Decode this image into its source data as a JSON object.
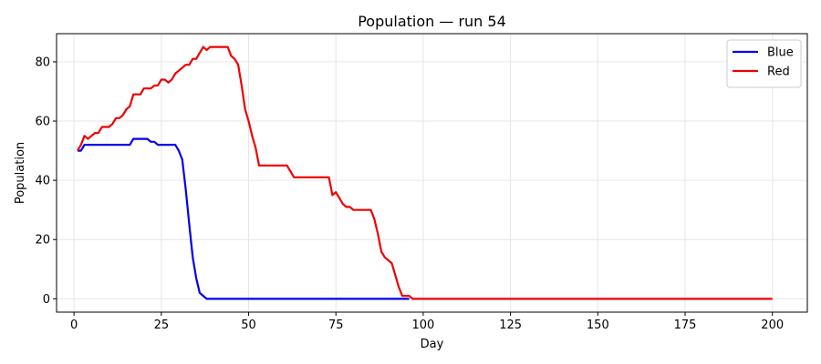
{
  "chart_data": {
    "type": "line",
    "title": "Population — run 54",
    "xlabel": "Day",
    "ylabel": "Population",
    "xlim": [
      -5,
      210
    ],
    "ylim": [
      -4.5,
      89.5
    ],
    "xticks": [
      0,
      25,
      50,
      75,
      100,
      125,
      150,
      175,
      200
    ],
    "yticks": [
      0,
      20,
      40,
      60,
      80
    ],
    "grid": true,
    "legend": "top-right",
    "series": [
      {
        "name": "Blue",
        "color": "#0000ee",
        "points": [
          [
            1,
            50
          ],
          [
            2,
            50
          ],
          [
            3,
            52
          ],
          [
            5,
            52
          ],
          [
            10,
            52
          ],
          [
            15,
            52
          ],
          [
            16,
            52
          ],
          [
            17,
            54
          ],
          [
            18,
            54
          ],
          [
            20,
            54
          ],
          [
            21,
            54
          ],
          [
            22,
            53
          ],
          [
            23,
            53
          ],
          [
            24,
            52
          ],
          [
            26,
            52
          ],
          [
            28,
            52
          ],
          [
            29,
            52
          ],
          [
            30,
            50
          ],
          [
            31,
            47
          ],
          [
            32,
            37
          ],
          [
            33,
            25
          ],
          [
            34,
            14
          ],
          [
            35,
            7
          ],
          [
            36,
            2
          ],
          [
            37,
            1
          ],
          [
            38,
            0
          ],
          [
            40,
            0
          ],
          [
            60,
            0
          ],
          [
            80,
            0
          ],
          [
            96,
            0
          ]
        ]
      },
      {
        "name": "Red",
        "color": "#ee0000",
        "points": [
          [
            1,
            50
          ],
          [
            2,
            52
          ],
          [
            3,
            55
          ],
          [
            4,
            54
          ],
          [
            5,
            55
          ],
          [
            6,
            56
          ],
          [
            7,
            56
          ],
          [
            8,
            58
          ],
          [
            9,
            58
          ],
          [
            10,
            58
          ],
          [
            11,
            59
          ],
          [
            12,
            61
          ],
          [
            13,
            61
          ],
          [
            14,
            62
          ],
          [
            15,
            64
          ],
          [
            16,
            65
          ],
          [
            17,
            69
          ],
          [
            18,
            69
          ],
          [
            19,
            69
          ],
          [
            20,
            71
          ],
          [
            21,
            71
          ],
          [
            22,
            71
          ],
          [
            23,
            72
          ],
          [
            24,
            72
          ],
          [
            25,
            74
          ],
          [
            26,
            74
          ],
          [
            27,
            73
          ],
          [
            28,
            74
          ],
          [
            29,
            76
          ],
          [
            30,
            77
          ],
          [
            31,
            78
          ],
          [
            32,
            79
          ],
          [
            33,
            79
          ],
          [
            34,
            81
          ],
          [
            35,
            81
          ],
          [
            36,
            83
          ],
          [
            37,
            85
          ],
          [
            38,
            84
          ],
          [
            39,
            85
          ],
          [
            40,
            85
          ],
          [
            41,
            85
          ],
          [
            42,
            85
          ],
          [
            43,
            85
          ],
          [
            44,
            85
          ],
          [
            45,
            82
          ],
          [
            46,
            81
          ],
          [
            47,
            79
          ],
          [
            48,
            72
          ],
          [
            49,
            64
          ],
          [
            50,
            60
          ],
          [
            51,
            55
          ],
          [
            52,
            51
          ],
          [
            53,
            45
          ],
          [
            54,
            45
          ],
          [
            56,
            45
          ],
          [
            58,
            45
          ],
          [
            60,
            45
          ],
          [
            61,
            45
          ],
          [
            62,
            43
          ],
          [
            63,
            41
          ],
          [
            64,
            41
          ],
          [
            66,
            41
          ],
          [
            68,
            41
          ],
          [
            70,
            41
          ],
          [
            72,
            41
          ],
          [
            73,
            41
          ],
          [
            74,
            35
          ],
          [
            75,
            36
          ],
          [
            76,
            34
          ],
          [
            77,
            32
          ],
          [
            78,
            31
          ],
          [
            79,
            31
          ],
          [
            80,
            30
          ],
          [
            81,
            30
          ],
          [
            82,
            30
          ],
          [
            83,
            30
          ],
          [
            84,
            30
          ],
          [
            85,
            30
          ],
          [
            86,
            27
          ],
          [
            87,
            22
          ],
          [
            88,
            16
          ],
          [
            89,
            14
          ],
          [
            90,
            13
          ],
          [
            91,
            12
          ],
          [
            92,
            8
          ],
          [
            93,
            4
          ],
          [
            94,
            1
          ],
          [
            95,
            1
          ],
          [
            96,
            1
          ],
          [
            97,
            0
          ],
          [
            98,
            0
          ],
          [
            100,
            0
          ],
          [
            120,
            0
          ],
          [
            140,
            0
          ],
          [
            160,
            0
          ],
          [
            180,
            0
          ],
          [
            200,
            0
          ]
        ]
      }
    ]
  }
}
